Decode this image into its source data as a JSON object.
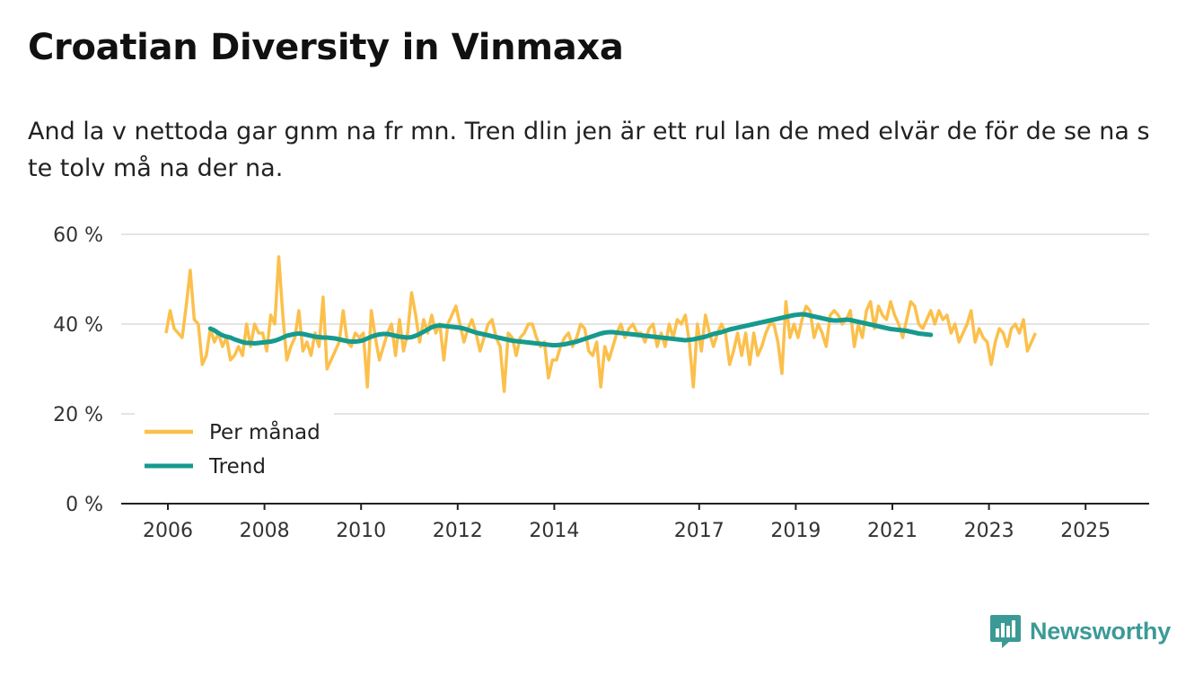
{
  "chart_data": {
    "type": "line",
    "title": "Croatian Diversity in Vinmaxa",
    "subtitle": "And la v nettoda gar gnm na fr mn. Tren dlin jen är ett rul lan de med elvär de för de se na s te tolv må na der na.",
    "xlabel": "",
    "ylabel": "",
    "ylim": [
      0,
      60
    ],
    "y_ticks": [
      "0 %",
      "20 %",
      "40 %",
      "60 %"
    ],
    "y_tick_values": [
      0,
      20,
      40,
      60
    ],
    "x_ticks": [
      "2006",
      "2008",
      "2010",
      "2012",
      "2014",
      "2017",
      "2019",
      "2021",
      "2023",
      "2025"
    ],
    "x_tick_values": [
      2006,
      2008,
      2010,
      2012,
      2014,
      2017,
      2019,
      2021,
      2023,
      2025
    ],
    "x_start": 2006,
    "legend": "bottom-left",
    "series": [
      {
        "name": "Per månad",
        "color": "#fbc04c",
        "values": [
          38,
          43,
          39,
          38,
          37,
          44,
          52,
          41,
          40,
          31,
          33,
          39,
          36,
          38,
          35,
          37,
          32,
          33,
          35,
          33,
          40,
          35,
          40,
          38,
          38,
          34,
          42,
          40,
          55,
          42,
          32,
          35,
          37,
          43,
          34,
          36,
          33,
          38,
          35,
          46,
          30,
          32,
          34,
          36,
          43,
          36,
          35,
          38,
          37,
          38,
          26,
          43,
          37,
          32,
          35,
          38,
          40,
          33,
          41,
          34,
          38,
          47,
          42,
          36,
          41,
          38,
          42,
          38,
          40,
          32,
          40,
          42,
          44,
          40,
          36,
          39,
          41,
          38,
          34,
          37,
          40,
          41,
          37,
          35,
          25,
          38,
          37,
          33,
          37,
          38,
          40,
          40,
          37,
          35,
          36,
          28,
          32,
          32,
          35,
          37,
          38,
          35,
          37,
          40,
          39,
          34,
          33,
          36,
          26,
          35,
          32,
          35,
          38,
          40,
          37,
          39,
          40,
          38,
          38,
          36,
          39,
          40,
          35,
          38,
          35,
          40,
          37,
          41,
          40,
          42,
          36,
          26,
          40,
          34,
          42,
          38,
          35,
          38,
          40,
          38,
          31,
          34,
          38,
          33,
          38,
          31,
          38,
          33,
          35,
          38,
          40,
          40,
          36,
          29,
          45,
          37,
          40,
          37,
          41,
          44,
          43,
          37,
          40,
          38,
          35,
          42,
          43,
          42,
          40,
          41,
          43,
          35,
          40,
          37,
          43,
          45,
          39,
          44,
          42,
          41,
          45,
          42,
          40,
          37,
          41,
          45,
          44,
          40,
          39,
          41,
          43,
          40,
          43,
          41,
          42,
          38,
          40,
          36,
          38,
          40,
          43,
          36,
          39,
          37,
          36,
          31,
          36,
          39,
          38,
          35,
          39,
          40,
          38,
          41,
          34,
          36,
          38
        ],
        "hasLabels": false
      },
      {
        "name": "Trend",
        "color": "#169a8e",
        "values": [
          39,
          38.6,
          38,
          37.5,
          37.2,
          37,
          36.6,
          36.3,
          36,
          35.8,
          35.8,
          35.7,
          35.8,
          35.9,
          36,
          36.1,
          36.3,
          36.6,
          37,
          37.4,
          37.6,
          37.8,
          37.9,
          37.8,
          37.6,
          37.4,
          37.2,
          37.1,
          37,
          37,
          36.9,
          36.8,
          36.6,
          36.4,
          36.2,
          36.1,
          36.1,
          36.2,
          36.4,
          36.8,
          37.2,
          37.5,
          37.7,
          37.8,
          37.8,
          37.6,
          37.4,
          37.2,
          37.1,
          37,
          37.1,
          37.4,
          37.8,
          38.3,
          38.8,
          39.3,
          39.6,
          39.7,
          39.6,
          39.5,
          39.4,
          39.3,
          39.2,
          39,
          38.7,
          38.4,
          38.1,
          37.9,
          37.7,
          37.5,
          37.3,
          37.1,
          36.9,
          36.7,
          36.5,
          36.3,
          36.2,
          36.1,
          36,
          35.9,
          35.8,
          35.7,
          35.6,
          35.5,
          35.4,
          35.3,
          35.3,
          35.4,
          35.5,
          35.7,
          35.9,
          36.1,
          36.4,
          36.7,
          37,
          37.3,
          37.6,
          37.9,
          38.1,
          38.2,
          38.2,
          38.1,
          38,
          37.9,
          37.8,
          37.7,
          37.6,
          37.5,
          37.4,
          37.3,
          37.2,
          37.1,
          37,
          36.9,
          36.8,
          36.7,
          36.6,
          36.5,
          36.4,
          36.5,
          36.6,
          36.8,
          37,
          37.2,
          37.5,
          37.8,
          38,
          38.2,
          38.5,
          38.8,
          39,
          39.2,
          39.4,
          39.6,
          39.8,
          40,
          40.2,
          40.4,
          40.6,
          40.8,
          41,
          41.2,
          41.4,
          41.6,
          41.8,
          42,
          42.1,
          42.2,
          42.1,
          41.9,
          41.7,
          41.5,
          41.3,
          41.1,
          40.9,
          40.8,
          40.8,
          40.9,
          41,
          40.9,
          40.7,
          40.5,
          40.3,
          40.1,
          39.9,
          39.7,
          39.5,
          39.3,
          39.1,
          38.9,
          38.8,
          38.7,
          38.6,
          38.5,
          38.3,
          38.1,
          37.9,
          37.8,
          37.7,
          37.6
        ],
        "hasLabels": false
      }
    ]
  },
  "brand": {
    "name": "Newsworthy",
    "icon": "newsworthy-logo-icon",
    "color": "#3c9a96"
  }
}
